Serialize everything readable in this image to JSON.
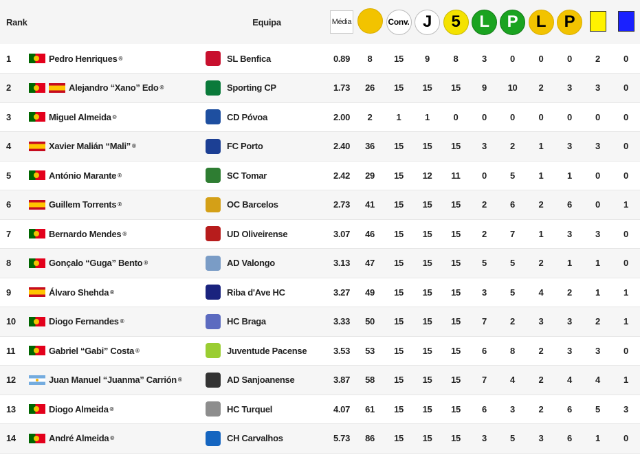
{
  "header": {
    "rank": "Rank",
    "team": "Equipa",
    "media": "Média",
    "conv": "Conv.",
    "j": "J",
    "five": "5",
    "l1": "L",
    "p1": "P",
    "l2": "L",
    "p2": "P"
  },
  "rows": [
    {
      "rank": "1",
      "flags": [
        "pt"
      ],
      "player": "Pedro Henriques",
      "team": "SL Benfica",
      "crest": "#c8102e",
      "media": "0.89",
      "v1": "8",
      "v2": "15",
      "v3": "9",
      "v4": "8",
      "v5": "3",
      "v6": "0",
      "v7": "0",
      "v8": "0",
      "v9": "2",
      "v10": "0"
    },
    {
      "rank": "2",
      "flags": [
        "pt",
        "es"
      ],
      "player": "Alejandro “Xano” Edo",
      "team": "Sporting CP",
      "crest": "#0a7a3a",
      "media": "1.73",
      "v1": "26",
      "v2": "15",
      "v3": "15",
      "v4": "15",
      "v5": "9",
      "v6": "10",
      "v7": "2",
      "v8": "3",
      "v9": "3",
      "v10": "0"
    },
    {
      "rank": "3",
      "flags": [
        "pt"
      ],
      "player": "Miguel Almeida",
      "team": "CD Póvoa",
      "crest": "#1e4fa0",
      "media": "2.00",
      "v1": "2",
      "v2": "1",
      "v3": "1",
      "v4": "0",
      "v5": "0",
      "v6": "0",
      "v7": "0",
      "v8": "0",
      "v9": "0",
      "v10": "0"
    },
    {
      "rank": "4",
      "flags": [
        "es"
      ],
      "player": "Xavier Malián “Mali”",
      "team": "FC Porto",
      "crest": "#1c3f94",
      "media": "2.40",
      "v1": "36",
      "v2": "15",
      "v3": "15",
      "v4": "15",
      "v5": "3",
      "v6": "2",
      "v7": "1",
      "v8": "3",
      "v9": "3",
      "v10": "0"
    },
    {
      "rank": "5",
      "flags": [
        "pt"
      ],
      "player": "António Marante",
      "team": "SC Tomar",
      "crest": "#2e7d32",
      "media": "2.42",
      "v1": "29",
      "v2": "15",
      "v3": "12",
      "v4": "11",
      "v5": "0",
      "v6": "5",
      "v7": "1",
      "v8": "1",
      "v9": "0",
      "v10": "0"
    },
    {
      "rank": "6",
      "flags": [
        "es"
      ],
      "player": "Guillem Torrents",
      "team": "OC Barcelos",
      "crest": "#d4a017",
      "media": "2.73",
      "v1": "41",
      "v2": "15",
      "v3": "15",
      "v4": "15",
      "v5": "2",
      "v6": "6",
      "v7": "2",
      "v8": "6",
      "v9": "0",
      "v10": "1"
    },
    {
      "rank": "7",
      "flags": [
        "pt"
      ],
      "player": "Bernardo Mendes",
      "team": "UD Oliveirense",
      "crest": "#b71c1c",
      "media": "3.07",
      "v1": "46",
      "v2": "15",
      "v3": "15",
      "v4": "15",
      "v5": "2",
      "v6": "7",
      "v7": "1",
      "v8": "3",
      "v9": "3",
      "v10": "0"
    },
    {
      "rank": "8",
      "flags": [
        "pt"
      ],
      "player": "Gonçalo “Guga” Bento",
      "team": "AD Valongo",
      "crest": "#7a9cc6",
      "media": "3.13",
      "v1": "47",
      "v2": "15",
      "v3": "15",
      "v4": "15",
      "v5": "5",
      "v6": "5",
      "v7": "2",
      "v8": "1",
      "v9": "1",
      "v10": "0"
    },
    {
      "rank": "9",
      "flags": [
        "es"
      ],
      "player": "Álvaro Shehda",
      "team": "Riba d'Ave HC",
      "crest": "#1a237e",
      "media": "3.27",
      "v1": "49",
      "v2": "15",
      "v3": "15",
      "v4": "15",
      "v5": "3",
      "v6": "5",
      "v7": "4",
      "v8": "2",
      "v9": "1",
      "v10": "1"
    },
    {
      "rank": "10",
      "flags": [
        "pt"
      ],
      "player": "Diogo Fernandes",
      "team": "HC Braga",
      "crest": "#5c6bc0",
      "media": "3.33",
      "v1": "50",
      "v2": "15",
      "v3": "15",
      "v4": "15",
      "v5": "7",
      "v6": "2",
      "v7": "3",
      "v8": "3",
      "v9": "2",
      "v10": "1"
    },
    {
      "rank": "11",
      "flags": [
        "pt"
      ],
      "player": "Gabriel “Gabi” Costa",
      "team": "Juventude Pacense",
      "crest": "#9acd32",
      "media": "3.53",
      "v1": "53",
      "v2": "15",
      "v3": "15",
      "v4": "15",
      "v5": "6",
      "v6": "8",
      "v7": "2",
      "v8": "3",
      "v9": "3",
      "v10": "0"
    },
    {
      "rank": "12",
      "flags": [
        "ar"
      ],
      "player": "Juan Manuel “Juanma” Carrión",
      "team": "AD Sanjoanense",
      "crest": "#333333",
      "media": "3.87",
      "v1": "58",
      "v2": "15",
      "v3": "15",
      "v4": "15",
      "v5": "7",
      "v6": "4",
      "v7": "2",
      "v8": "4",
      "v9": "4",
      "v10": "1"
    },
    {
      "rank": "13",
      "flags": [
        "pt"
      ],
      "player": "Diogo Almeida",
      "team": "HC Turquel",
      "crest": "#8d8d8d",
      "media": "4.07",
      "v1": "61",
      "v2": "15",
      "v3": "15",
      "v4": "15",
      "v5": "6",
      "v6": "3",
      "v7": "2",
      "v8": "6",
      "v9": "5",
      "v10": "3"
    },
    {
      "rank": "14",
      "flags": [
        "pt"
      ],
      "player": "André Almeida",
      "team": "CH Carvalhos",
      "crest": "#1565c0",
      "media": "5.73",
      "v1": "86",
      "v2": "15",
      "v3": "15",
      "v4": "15",
      "v5": "3",
      "v6": "5",
      "v7": "3",
      "v8": "6",
      "v9": "1",
      "v10": "0"
    }
  ]
}
